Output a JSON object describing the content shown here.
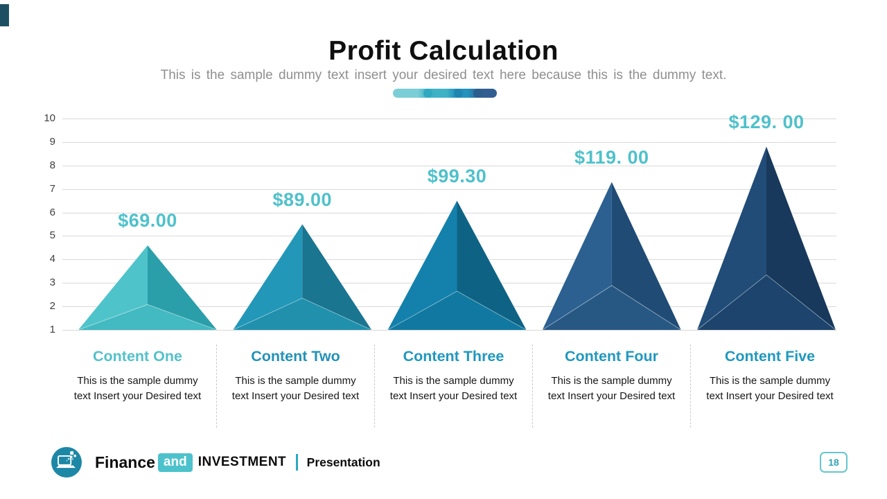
{
  "slide": {
    "title": "Profit Calculation",
    "subtitle": "This is the sample dummy text insert your desired text here because this is the dummy text.",
    "page_number": "18",
    "accent_bar_color": "#1d4f63"
  },
  "divider": {
    "segment_colors": [
      "#7bced6",
      "#3fb2c6",
      "#2392bd",
      "#315f91"
    ],
    "joint_dot_colors": [
      "#2fa8c0",
      "#1f86b2",
      "#2b5d8d"
    ]
  },
  "chart_data": {
    "type": "bar",
    "subtype": "3d-pyramid",
    "title": "Profit Calculation",
    "categories": [
      "Content One",
      "Content Two",
      "Content Three",
      "Content Four",
      "Content Five"
    ],
    "series": [
      {
        "name": "Profit",
        "value_labels": [
          "$69.00",
          "$89.00",
          "$99.30",
          "$119. 00",
          "$129. 00"
        ],
        "values": [
          69.0,
          89.0,
          99.3,
          119.0,
          129.0
        ],
        "apex_heights_axis_units": [
          4.6,
          5.5,
          6.5,
          7.3,
          8.8
        ]
      }
    ],
    "y_ticks": [
      10,
      9,
      8,
      7,
      6,
      5,
      4,
      3,
      2,
      1
    ],
    "ylim": [
      1,
      10
    ],
    "grid": true,
    "legend": false,
    "gridline_color": "#d9d9d9",
    "tick_label_color": "#3e3e3e",
    "value_label_color": "#4ec1cb",
    "pyramid_colors": [
      {
        "left": "#4fc3ca",
        "right": "#2b9fa9",
        "bottom": "#43b9c1"
      },
      {
        "left": "#2397b7",
        "right": "#1a7590",
        "bottom": "#2090ad"
      },
      {
        "left": "#1381ab",
        "right": "#0e6384",
        "bottom": "#1179a1"
      },
      {
        "left": "#2b6090",
        "right": "#1f4b74",
        "bottom": "#275884"
      },
      {
        "left": "#204c77",
        "right": "#18395b",
        "bottom": "#1c446c"
      }
    ],
    "category_title_colors": [
      "#53c1ca",
      "#2392b7",
      "#2098bf",
      "#2098bf",
      "#2098bf"
    ],
    "category_description": "This is the sample dummy text Insert your Desired text"
  },
  "footer": {
    "brand_bold": "Finance",
    "brand_and": "and",
    "brand_rest": "INVESTMENT",
    "doc_type": "Presentation",
    "and_badge_color": "#4dc2cc",
    "logo_color": "#1d87a6",
    "logo_icon": "laptop-icon",
    "page_box_border_color": "#65c5ce",
    "page_number_color": "#2fa4b4"
  }
}
